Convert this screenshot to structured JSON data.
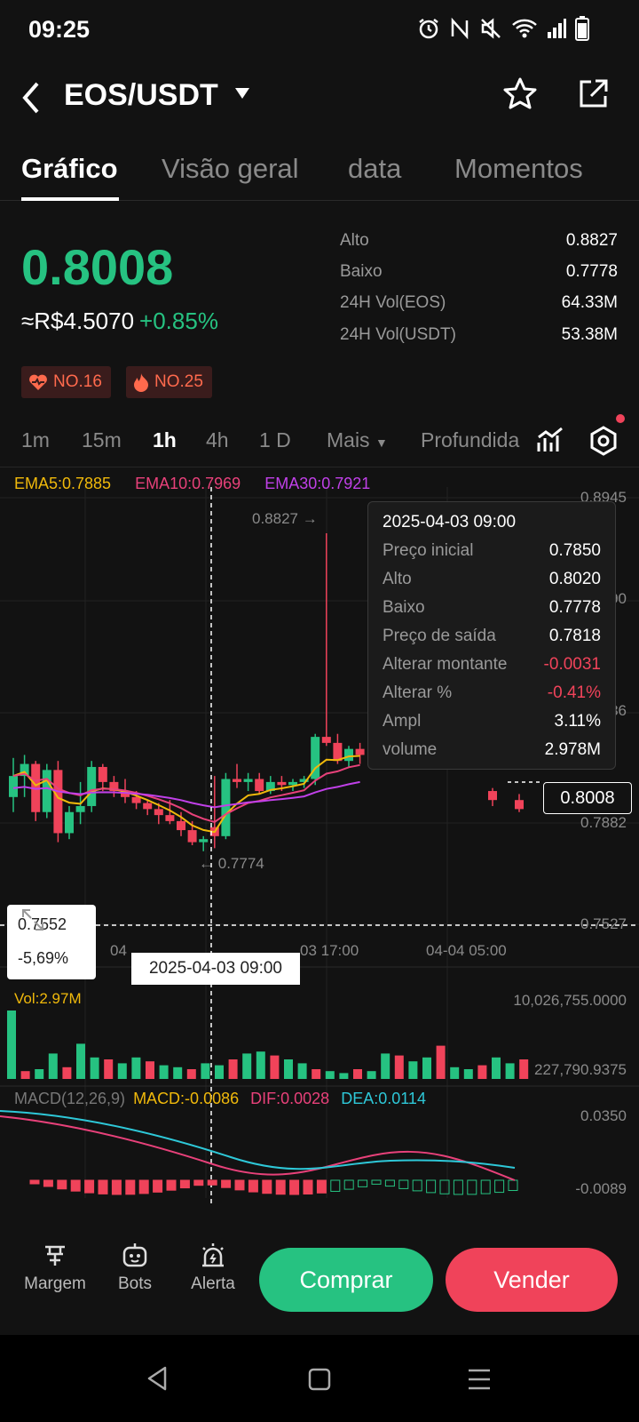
{
  "status_bar": {
    "time": "09:25",
    "icons": [
      "alarm-icon",
      "nfc-icon",
      "mute-icon",
      "wifi-icon",
      "signal-icon",
      "battery-icon"
    ]
  },
  "header": {
    "title": "EOS/USDT"
  },
  "tabs": [
    "Gráfico",
    "Visão geral",
    "data",
    "Momentos"
  ],
  "price": {
    "last": "0.8008",
    "fiat": "≈R$4.5070",
    "change": "+0.85%"
  },
  "stats": [
    {
      "label": "Alto",
      "value": "0.8827"
    },
    {
      "label": "Baixo",
      "value": "0.7778"
    },
    {
      "label": "24H Vol(EOS)",
      "value": "64.33M"
    },
    {
      "label": "24H Vol(USDT)",
      "value": "53.38M"
    }
  ],
  "badges": [
    "NO.16",
    "NO.25"
  ],
  "intervals": [
    "1m",
    "15m",
    "1h",
    "4h",
    "1 D",
    "Mais",
    "Profundida"
  ],
  "ema": {
    "ema5": "EMA5:0.7885",
    "ema10": "EMA10:0.7969",
    "ema30": "EMA30:0.7921"
  },
  "price_axis": [
    "0.8945",
    "90",
    "86",
    "0.7882",
    "0.7527"
  ],
  "annotations": {
    "high": "0.8827",
    "low": "0.7774"
  },
  "time_axis": [
    "04",
    "03 17:00",
    "04-04 05:00"
  ],
  "cursor": {
    "price": "0.7552",
    "pct": "-5,69%",
    "date": "2025-04-03 09:00"
  },
  "current_price_tag": "0.8008",
  "tooltip": {
    "date": "2025-04-03 09:00",
    "rows": [
      {
        "label": "Preço inicial",
        "value": "0.7850"
      },
      {
        "label": "Alto",
        "value": "0.8020"
      },
      {
        "label": "Baixo",
        "value": "0.7778"
      },
      {
        "label": "Preço de saída",
        "value": "0.7818"
      },
      {
        "label": "Alterar montante",
        "value": "-0.0031"
      },
      {
        "label": "Alterar %",
        "value": "-0.41%"
      },
      {
        "label": "Ampl",
        "value": "3.11%"
      },
      {
        "label": "volume",
        "value": "2.978M"
      }
    ]
  },
  "volume": {
    "label": "Vol:2.97M",
    "max": "10,026,755.0000",
    "min": "227,790.9375"
  },
  "macd": {
    "title": "MACD(12,26,9)",
    "macd": "MACD:-0.0086",
    "dif": "DIF:0.0028",
    "dea": "DEA:0.0114",
    "max": "0.0350",
    "min": "-0.0089"
  },
  "bottom": {
    "margin": "Margem",
    "bots": "Bots",
    "alert": "Alerta",
    "buy": "Comprar",
    "sell": "Vender"
  },
  "colors": {
    "up": "#26c281",
    "down": "#f0435a",
    "ema5": "#f0b90b",
    "ema10": "#e8417a",
    "ema30": "#c040e8",
    "dea": "#2ec8d8"
  },
  "chart_data": {
    "type": "candlestick",
    "candles": [
      [
        0.795,
        0.808,
        0.79,
        0.802
      ],
      [
        0.802,
        0.809,
        0.795,
        0.806
      ],
      [
        0.806,
        0.807,
        0.787,
        0.79
      ],
      [
        0.79,
        0.806,
        0.788,
        0.804
      ],
      [
        0.804,
        0.807,
        0.78,
        0.783
      ],
      [
        0.783,
        0.792,
        0.781,
        0.79
      ],
      [
        0.79,
        0.8,
        0.786,
        0.792
      ],
      [
        0.792,
        0.807,
        0.79,
        0.805
      ],
      [
        0.805,
        0.806,
        0.797,
        0.8
      ],
      [
        0.8,
        0.802,
        0.795,
        0.797
      ],
      [
        0.797,
        0.801,
        0.793,
        0.795
      ],
      [
        0.795,
        0.797,
        0.791,
        0.793
      ],
      [
        0.793,
        0.794,
        0.789,
        0.791
      ],
      [
        0.791,
        0.793,
        0.786,
        0.789
      ],
      [
        0.789,
        0.794,
        0.786,
        0.787
      ],
      [
        0.787,
        0.79,
        0.782,
        0.784
      ],
      [
        0.784,
        0.787,
        0.779,
        0.78
      ],
      [
        0.78,
        0.782,
        0.777,
        0.781
      ],
      [
        0.785,
        0.802,
        0.778,
        0.782
      ],
      [
        0.782,
        0.803,
        0.781,
        0.801
      ],
      [
        0.801,
        0.806,
        0.798,
        0.8
      ],
      [
        0.8,
        0.803,
        0.797,
        0.801
      ],
      [
        0.801,
        0.803,
        0.796,
        0.797
      ],
      [
        0.797,
        0.802,
        0.796,
        0.8
      ],
      [
        0.8,
        0.802,
        0.797,
        0.799
      ],
      [
        0.799,
        0.801,
        0.797,
        0.8
      ],
      [
        0.8,
        0.802,
        0.798,
        0.801
      ],
      [
        0.801,
        0.816,
        0.799,
        0.815
      ],
      [
        0.815,
        0.8827,
        0.812,
        0.813
      ],
      [
        0.813,
        0.816,
        0.806,
        0.807
      ],
      [
        0.807,
        0.812,
        0.805,
        0.811
      ],
      [
        0.811,
        0.813,
        0.806,
        0.809
      ]
    ],
    "tail_candles": [
      [
        0.797,
        0.798,
        0.792,
        0.794
      ],
      [
        0.794,
        0.796,
        0.79,
        0.791
      ]
    ]
  }
}
